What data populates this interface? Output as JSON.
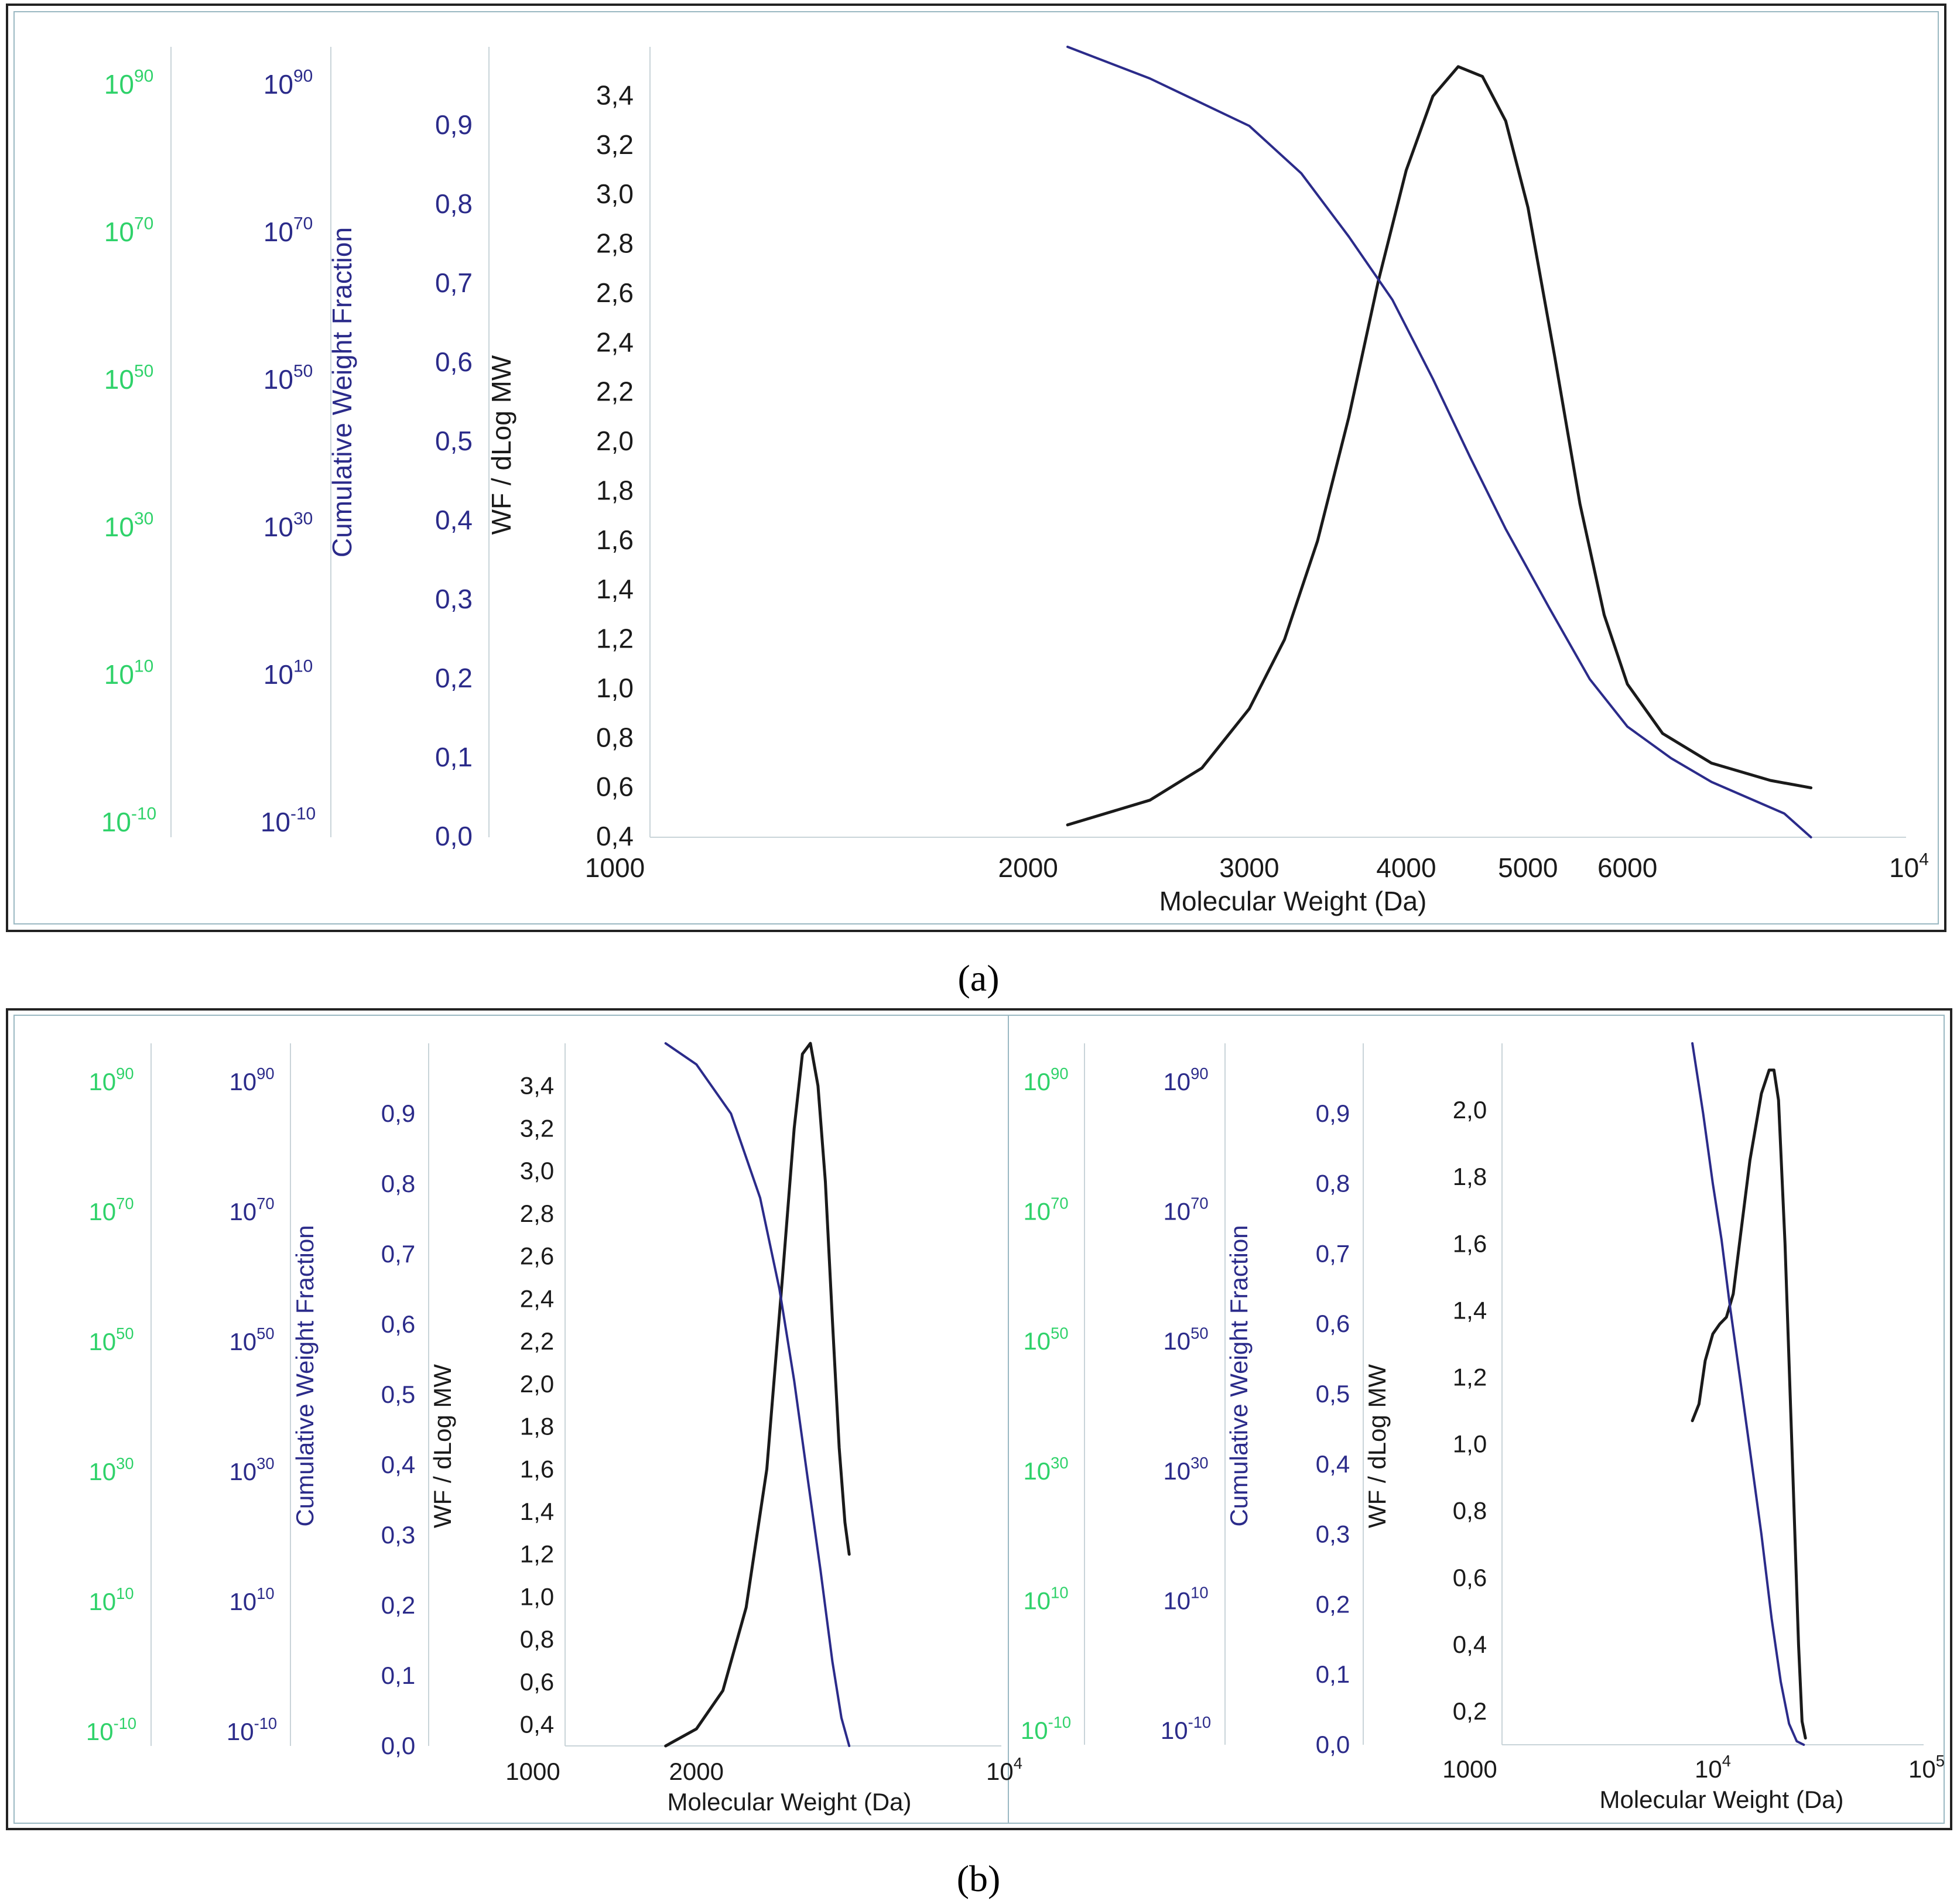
{
  "colors": {
    "green": "#2fd26a",
    "navy": "#2b2b8a",
    "black": "#1a1a1a",
    "axis": "#c9d4d9",
    "frame": "#222222",
    "inner_frame": "#9ab8c2"
  },
  "chart_data": [
    {
      "id": "a",
      "type": "line",
      "caption": "(a)",
      "xscale": "log",
      "xlabel": "Molecular Weight (Da)",
      "xlim": [
        1000,
        10000
      ],
      "x_ticks": [
        {
          "v": 1000,
          "t": "1000"
        },
        {
          "v": 2000,
          "t": "2000"
        },
        {
          "v": 3000,
          "t": "3000"
        },
        {
          "v": 4000,
          "t": "4000"
        },
        {
          "v": 5000,
          "t": "5000"
        },
        {
          "v": 6000,
          "t": "6000"
        }
      ],
      "x_end": {
        "base": "10",
        "exp": "4"
      },
      "y_axes": [
        {
          "role": "green",
          "label": "",
          "pow_ticks": [
            "-10",
            "10",
            "30",
            "50",
            "70",
            "90"
          ]
        },
        {
          "role": "cum",
          "label": "Cumulative Weight Fraction",
          "pow_ticks": [
            "-10",
            "10",
            "30",
            "50",
            "70",
            "90"
          ]
        },
        {
          "role": "wfcum",
          "label": "WF / dLog MW",
          "ticks": [
            "0,0",
            "0,1",
            "0,2",
            "0,3",
            "0,4",
            "0,5",
            "0,6",
            "0,7",
            "0,8",
            "0,9"
          ]
        },
        {
          "role": "wf",
          "label": "",
          "ticks": [
            "0,4",
            "0,6",
            "0,8",
            "1,0",
            "1,2",
            "1,4",
            "1,6",
            "1,8",
            "2,0",
            "2,2",
            "2,4",
            "2,6",
            "2,8",
            "3,0",
            "3,2",
            "3,4"
          ]
        }
      ],
      "wf_ylim": [
        0.4,
        3.6
      ],
      "cum_ylim": [
        0,
        1.0
      ],
      "series": [
        {
          "name": "WF / dLog MW",
          "axis": "wf",
          "color": "black",
          "points": [
            [
              2150,
              0.45
            ],
            [
              2500,
              0.55
            ],
            [
              2750,
              0.68
            ],
            [
              3000,
              0.92
            ],
            [
              3200,
              1.2
            ],
            [
              3400,
              1.6
            ],
            [
              3600,
              2.1
            ],
            [
              3800,
              2.65
            ],
            [
              4000,
              3.1
            ],
            [
              4200,
              3.4
            ],
            [
              4400,
              3.52
            ],
            [
              4600,
              3.48
            ],
            [
              4800,
              3.3
            ],
            [
              5000,
              2.95
            ],
            [
              5250,
              2.35
            ],
            [
              5500,
              1.75
            ],
            [
              5750,
              1.3
            ],
            [
              6000,
              1.02
            ],
            [
              6400,
              0.82
            ],
            [
              7000,
              0.7
            ],
            [
              7800,
              0.63
            ],
            [
              8400,
              0.6
            ]
          ]
        },
        {
          "name": "Cumulative Weight Fraction",
          "axis": "cum",
          "color": "navy",
          "points": [
            [
              2150,
              1.0
            ],
            [
              2500,
              0.96
            ],
            [
              3000,
              0.9
            ],
            [
              3300,
              0.84
            ],
            [
              3600,
              0.76
            ],
            [
              3900,
              0.68
            ],
            [
              4200,
              0.58
            ],
            [
              4500,
              0.48
            ],
            [
              4800,
              0.39
            ],
            [
              5200,
              0.29
            ],
            [
              5600,
              0.2
            ],
            [
              6000,
              0.14
            ],
            [
              6500,
              0.1
            ],
            [
              7000,
              0.07
            ],
            [
              8000,
              0.03
            ],
            [
              8400,
              0.0
            ]
          ]
        }
      ]
    },
    {
      "id": "b1",
      "type": "line",
      "caption": "(b)",
      "xscale": "log",
      "xlabel": "Molecular Weight (Da)",
      "xlim": [
        1000,
        10000
      ],
      "x_ticks": [
        {
          "v": 1000,
          "t": "1000"
        },
        {
          "v": 2000,
          "t": "2000"
        }
      ],
      "x_end": {
        "base": "10",
        "exp": "4"
      },
      "y_axes": [
        {
          "role": "green",
          "label": "",
          "pow_ticks": [
            "-10",
            "10",
            "30",
            "50",
            "70",
            "90"
          ]
        },
        {
          "role": "cum",
          "label": "Cumulative Weight Fraction",
          "pow_ticks": [
            "-10",
            "10",
            "30",
            "50",
            "70",
            "90"
          ]
        },
        {
          "role": "wfcum",
          "label": "WF / dLog MW",
          "ticks": [
            "0,0",
            "0,1",
            "0,2",
            "0,3",
            "0,4",
            "0,5",
            "0,6",
            "0,7",
            "0,8",
            "0,9"
          ]
        },
        {
          "role": "wf",
          "label": "",
          "ticks": [
            "0,4",
            "0,6",
            "0,8",
            "1,0",
            "1,2",
            "1,4",
            "1,6",
            "1,8",
            "2,0",
            "2,2",
            "2,4",
            "2,6",
            "2,8",
            "3,0",
            "3,2",
            "3,4"
          ]
        }
      ],
      "wf_ylim": [
        0.3,
        3.6
      ],
      "cum_ylim": [
        0,
        1.0
      ],
      "series": [
        {
          "name": "WF / dLog MW",
          "axis": "wf",
          "color": "black",
          "points": [
            [
              1700,
              0.3
            ],
            [
              2000,
              0.38
            ],
            [
              2300,
              0.56
            ],
            [
              2600,
              0.95
            ],
            [
              2900,
              1.6
            ],
            [
              3150,
              2.5
            ],
            [
              3350,
              3.2
            ],
            [
              3500,
              3.55
            ],
            [
              3650,
              3.6
            ],
            [
              3800,
              3.4
            ],
            [
              3950,
              2.95
            ],
            [
              4100,
              2.3
            ],
            [
              4250,
              1.7
            ],
            [
              4380,
              1.35
            ],
            [
              4480,
              1.2
            ]
          ]
        },
        {
          "name": "Cumulative Weight Fraction",
          "axis": "cum",
          "color": "navy",
          "points": [
            [
              1700,
              1.0
            ],
            [
              2000,
              0.97
            ],
            [
              2400,
              0.9
            ],
            [
              2800,
              0.78
            ],
            [
              3100,
              0.65
            ],
            [
              3350,
              0.52
            ],
            [
              3600,
              0.38
            ],
            [
              3850,
              0.25
            ],
            [
              4100,
              0.12
            ],
            [
              4300,
              0.04
            ],
            [
              4480,
              0.0
            ]
          ]
        }
      ]
    },
    {
      "id": "b2",
      "type": "line",
      "caption": "",
      "xscale": "log",
      "xlabel": "Molecular Weight (Da)",
      "xlim": [
        1000,
        100000
      ],
      "x_ticks": [
        {
          "v": 1000,
          "t": "1000"
        }
      ],
      "x_pow_ticks": [
        {
          "v": 10000,
          "base": "10",
          "exp": "4"
        }
      ],
      "x_end": {
        "base": "10",
        "exp": "5"
      },
      "y_axes": [
        {
          "role": "green",
          "label": "",
          "pow_ticks": [
            "-10",
            "10",
            "30",
            "50",
            "70",
            "90"
          ]
        },
        {
          "role": "cum",
          "label": "Cumulative Weight Fraction",
          "pow_ticks": [
            "-10",
            "10",
            "30",
            "50",
            "70",
            "90"
          ]
        },
        {
          "role": "wfcum",
          "label": "WF / dLog MW",
          "ticks": [
            "0,0",
            "0,1",
            "0,2",
            "0,3",
            "0,4",
            "0,5",
            "0,6",
            "0,7",
            "0,8",
            "0,9"
          ]
        },
        {
          "role": "wf",
          "label": "",
          "ticks": [
            "0,2",
            "0,4",
            "0,6",
            "0,8",
            "1,0",
            "1,2",
            "1,4",
            "1,6",
            "1,8",
            "2,0"
          ]
        }
      ],
      "wf_ylim": [
        0.1,
        2.2
      ],
      "cum_ylim": [
        0,
        1.0
      ],
      "series": [
        {
          "name": "WF / dLog MW",
          "axis": "wf",
          "color": "black",
          "points": [
            [
              8000,
              1.07
            ],
            [
              8600,
              1.12
            ],
            [
              9200,
              1.25
            ],
            [
              10000,
              1.33
            ],
            [
              10800,
              1.36
            ],
            [
              11600,
              1.38
            ],
            [
              12500,
              1.45
            ],
            [
              13500,
              1.62
            ],
            [
              15000,
              1.85
            ],
            [
              17000,
              2.05
            ],
            [
              18500,
              2.12
            ],
            [
              19500,
              2.12
            ],
            [
              20500,
              2.03
            ],
            [
              22000,
              1.6
            ],
            [
              24000,
              0.9
            ],
            [
              25500,
              0.4
            ],
            [
              26500,
              0.17
            ],
            [
              27500,
              0.12
            ]
          ]
        },
        {
          "name": "Cumulative Weight Fraction",
          "axis": "cum",
          "color": "navy",
          "points": [
            [
              8000,
              1.0
            ],
            [
              9000,
              0.9
            ],
            [
              10000,
              0.8
            ],
            [
              11000,
              0.72
            ],
            [
              12000,
              0.63
            ],
            [
              13500,
              0.52
            ],
            [
              15000,
              0.42
            ],
            [
              17000,
              0.3
            ],
            [
              19000,
              0.18
            ],
            [
              21000,
              0.09
            ],
            [
              23000,
              0.03
            ],
            [
              25000,
              0.005
            ],
            [
              27000,
              0.0
            ]
          ]
        }
      ]
    }
  ]
}
